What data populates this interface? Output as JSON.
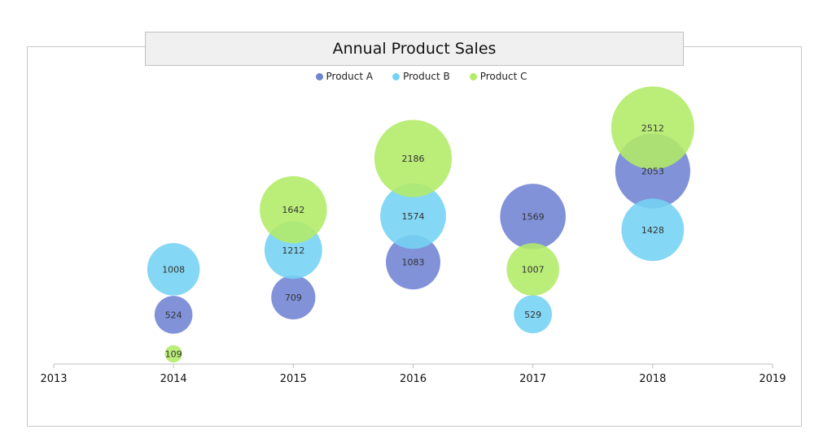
{
  "chart_data": {
    "type": "bubble",
    "title": "Annual Product Sales",
    "xlim": [
      2013,
      2019
    ],
    "x_ticks": [
      "2013",
      "2014",
      "2015",
      "2016",
      "2017",
      "2018",
      "2019"
    ],
    "ylim": [
      0,
      2600
    ],
    "y_axis_visible": false,
    "grid": false,
    "legend_position": "top",
    "series": [
      {
        "name": "Product A",
        "color": "#6f83d4",
        "x": [
          2014,
          2015,
          2016,
          2017,
          2018
        ],
        "values": [
          524,
          709,
          1083,
          1569,
          2053
        ]
      },
      {
        "name": "Product B",
        "color": "#74d3f4",
        "x": [
          2014,
          2015,
          2016,
          2017,
          2018
        ],
        "values": [
          1008,
          1212,
          1574,
          529,
          1428
        ]
      },
      {
        "name": "Product C",
        "color": "#b2eb66",
        "x": [
          2014,
          2015,
          2016,
          2017,
          2018
        ],
        "values": [
          109,
          1642,
          2186,
          1007,
          2512
        ]
      }
    ]
  }
}
